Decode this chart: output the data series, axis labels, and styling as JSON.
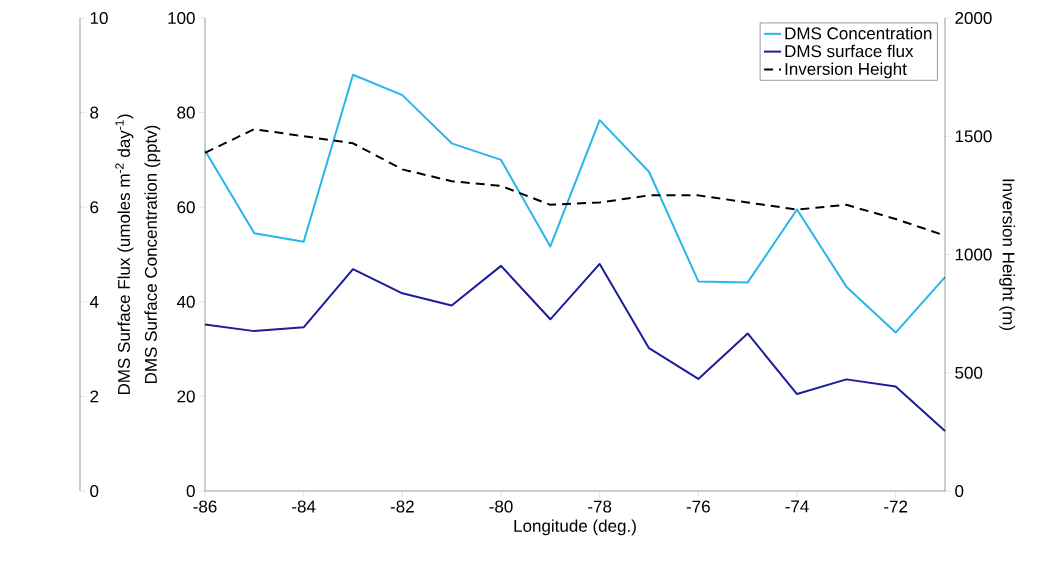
{
  "chart_data": {
    "type": "line",
    "xlabel": "Longitude (deg.)",
    "ylabel": "DMS Surface Concentration (pptv)",
    "y2label": "Inversion Height (m)",
    "y3label": "DMS Surface Flux (umoles m$^{-2}$ day$^{-1}$)",
    "x": [
      -86,
      -85,
      -84,
      -83,
      -82,
      -81,
      -80,
      -79,
      -78,
      -77,
      -76,
      -75,
      -74,
      -73,
      -72,
      -71
    ],
    "xlim": [
      -86,
      -71
    ],
    "xticks": [
      -86,
      -84,
      -82,
      -80,
      -78,
      -76,
      -74,
      -72
    ],
    "ylim": [
      0,
      100
    ],
    "yticks": [
      0,
      20,
      40,
      60,
      80,
      100
    ],
    "y2lim": [
      0,
      2000
    ],
    "y2ticks": [
      0,
      500,
      1000,
      1500,
      2000
    ],
    "y3lim": [
      0,
      10
    ],
    "y3ticks": [
      0,
      2,
      4,
      6,
      8,
      10
    ],
    "legend": "top right",
    "marker": "none",
    "series": [
      {
        "name": "DMS Concentration",
        "color": "#29b5ea",
        "values": [
          72,
          54.5,
          52.7,
          88,
          83.7,
          73.5,
          70,
          51.7,
          78.4,
          67.5,
          44.3,
          44.1,
          59.5,
          43.2,
          33.5,
          45.2
        ]
      },
      {
        "name": "DMS surface flux",
        "color": "#1c1c9c",
        "axis": "y3",
        "values": [
          3.52,
          3.38,
          3.46,
          4.69,
          4.18,
          3.92,
          4.76,
          3.63,
          4.8,
          3.02,
          2.37,
          3.33,
          2.05,
          2.36,
          2.21,
          1.27
        ]
      },
      {
        "name": "Inversion Height",
        "color": "#000000",
        "axis": "y2",
        "line_style": "dashed",
        "values": [
          1430,
          1530,
          1500,
          1470,
          1360,
          1310,
          1290,
          1210,
          1220,
          1250,
          1250,
          1220,
          1190,
          1210,
          1150,
          1080
        ]
      }
    ]
  }
}
